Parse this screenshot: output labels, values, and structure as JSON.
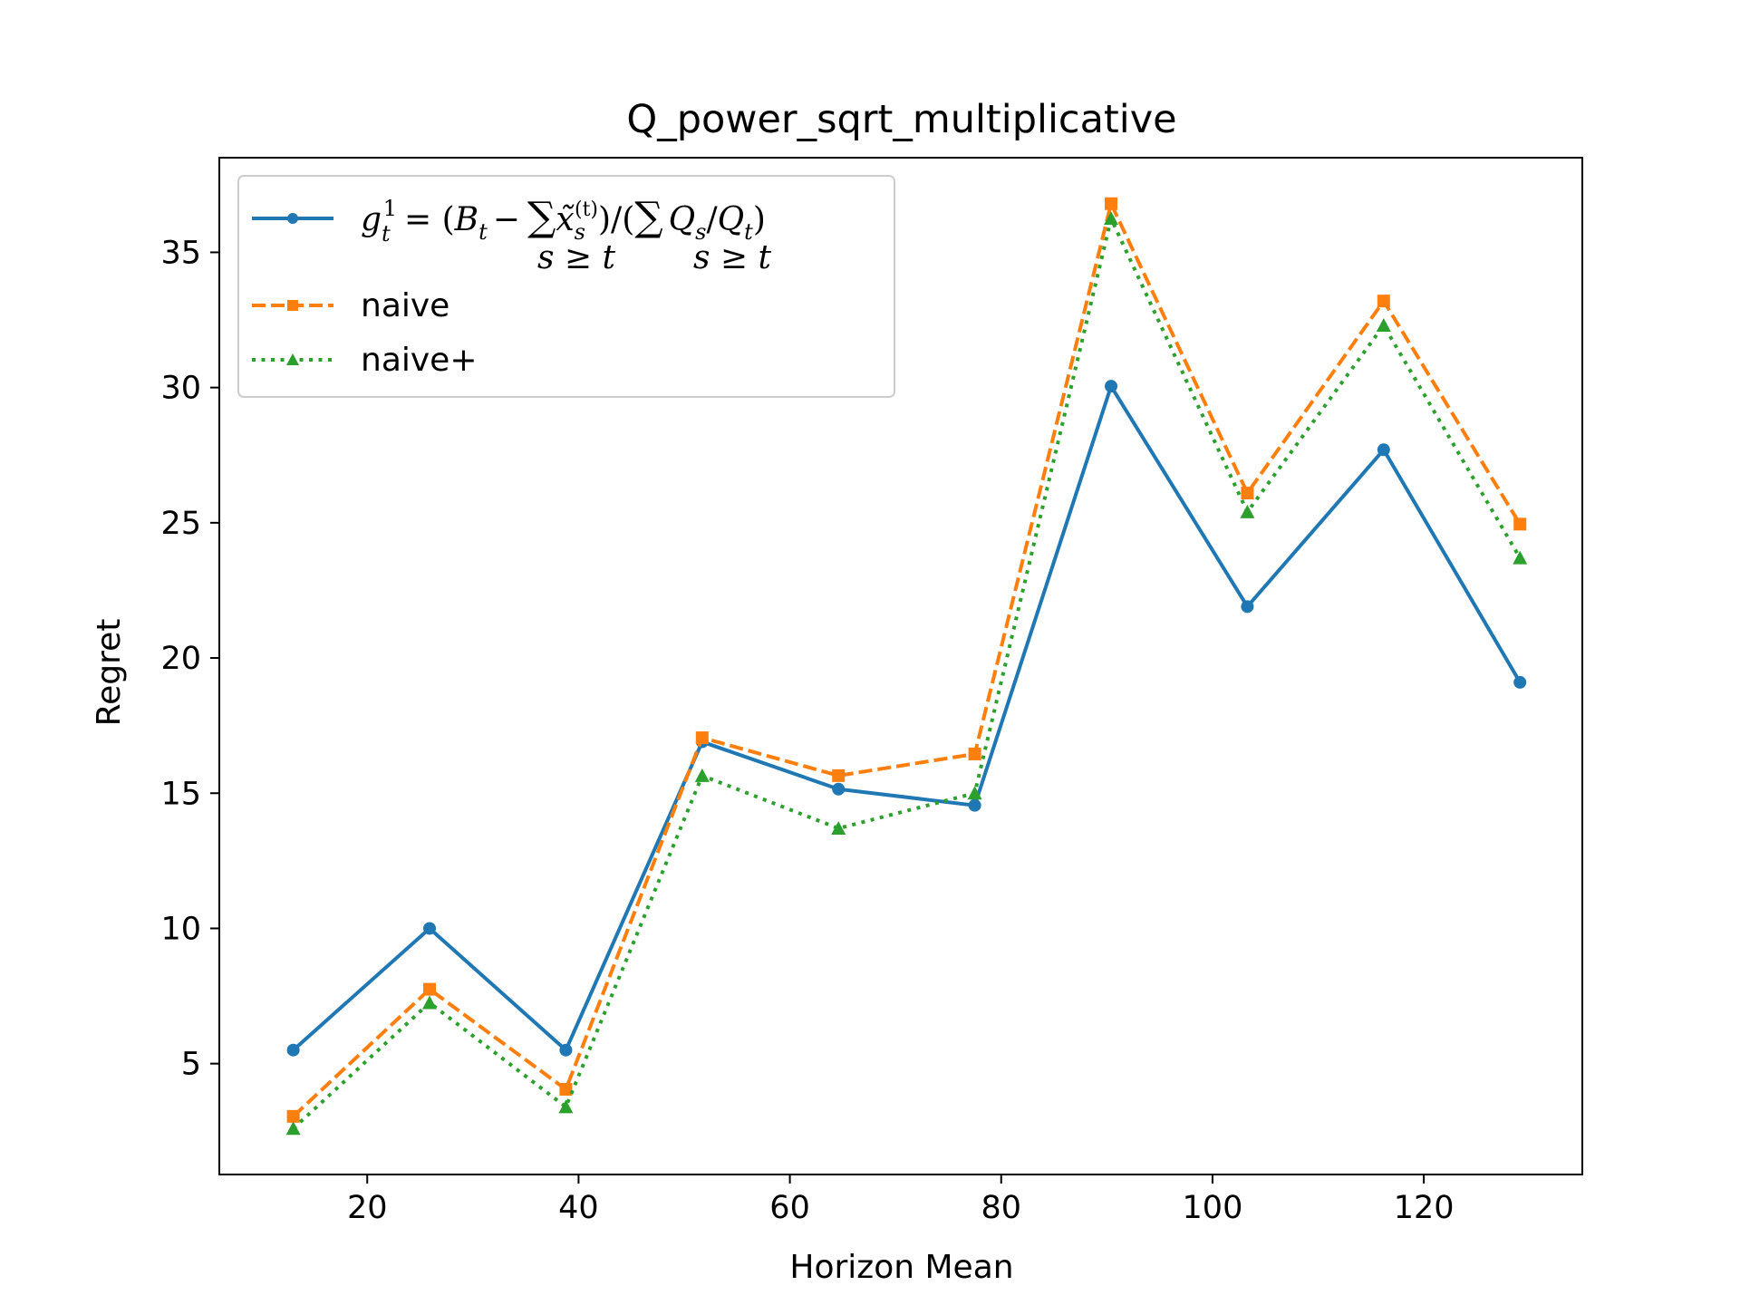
{
  "chart_data": {
    "type": "line",
    "title": "Q_power_sqrt_multiplicative",
    "xlabel": "Horizon Mean",
    "ylabel": "Regret",
    "xlim": [
      6,
      135
    ],
    "ylim": [
      0.9,
      38.5
    ],
    "xticks": [
      20,
      40,
      60,
      80,
      100,
      120
    ],
    "yticks": [
      5,
      10,
      15,
      20,
      25,
      30,
      35
    ],
    "grid": false,
    "legend_position": "upper-left",
    "x": [
      13,
      25.9,
      38.8,
      51.7,
      64.6,
      77.5,
      90.4,
      103.3,
      116.2,
      129.1
    ],
    "series": [
      {
        "name": "g_t^1 = (B_t − Σ_{s≥t} x̃_s^(t)) / (Σ_{s≥t} Q_s/Q_t)",
        "color": "#1f77b4",
        "linestyle": "solid",
        "marker": "circle",
        "values": [
          5.5,
          10.0,
          5.5,
          16.9,
          15.15,
          14.55,
          30.05,
          21.9,
          27.7,
          19.1
        ]
      },
      {
        "name": "naive",
        "color": "#ff7f0e",
        "linestyle": "dashed",
        "marker": "square",
        "values": [
          3.05,
          7.75,
          4.05,
          17.05,
          15.65,
          16.45,
          36.8,
          26.1,
          33.2,
          24.95
        ]
      },
      {
        "name": "naive+",
        "color": "#2ca02c",
        "linestyle": "dotted",
        "marker": "triangle",
        "values": [
          2.6,
          7.25,
          3.4,
          15.65,
          13.7,
          15.0,
          36.25,
          25.4,
          32.3,
          23.7
        ]
      }
    ],
    "legend": {
      "math_parts": {
        "g": "g",
        "g_sub": "t",
        "g_sup": "1",
        "eq": "= (",
        "B": "B",
        "B_sub": "t",
        "minus": "−",
        "sigma": "∑",
        "sum_sub": "s ≥ t",
        "x": "x̃",
        "x_sub": "s",
        "x_sup": "(t)",
        "mid": ")/(",
        "Q": "Q",
        "Q_sub": "s",
        "slash": "/",
        "Q2": "Q",
        "Q2_sub": "t",
        "close": ")"
      }
    }
  }
}
